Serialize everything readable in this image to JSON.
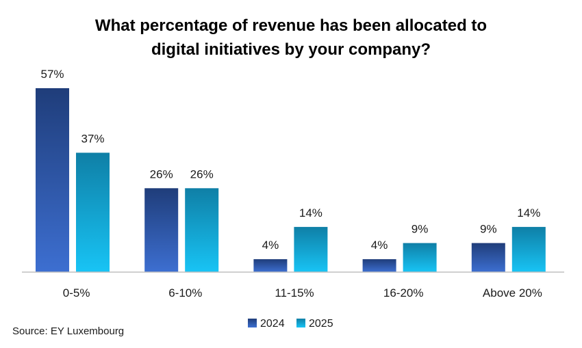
{
  "chart_data": {
    "type": "bar",
    "title_lines": [
      "What percentage of revenue has been allocated to",
      "digital initiatives by your company?"
    ],
    "categories": [
      "0-5%",
      "6-10%",
      "11-15%",
      "16-20%",
      "Above 20%"
    ],
    "series": [
      {
        "name": "2024",
        "values": [
          57,
          26,
          4,
          4,
          9
        ],
        "labels": [
          "57%",
          "26%",
          "4%",
          "4%",
          "9%"
        ],
        "color_top": "#1f3d7a",
        "color_bottom": "#3d6fd1"
      },
      {
        "name": "2025",
        "values": [
          37,
          26,
          14,
          9,
          14
        ],
        "labels": [
          "37%",
          "26%",
          "14%",
          "9%",
          "14%"
        ],
        "color_top": "#0f7fa6",
        "color_bottom": "#18c4f5"
      }
    ],
    "ylim": [
      0,
      57
    ],
    "grid": false,
    "legend": "bottom-center",
    "xlabel": "",
    "ylabel": ""
  },
  "source": "Source: EY Luxembourg",
  "colors": {
    "axis": "#bfbfbf"
  }
}
